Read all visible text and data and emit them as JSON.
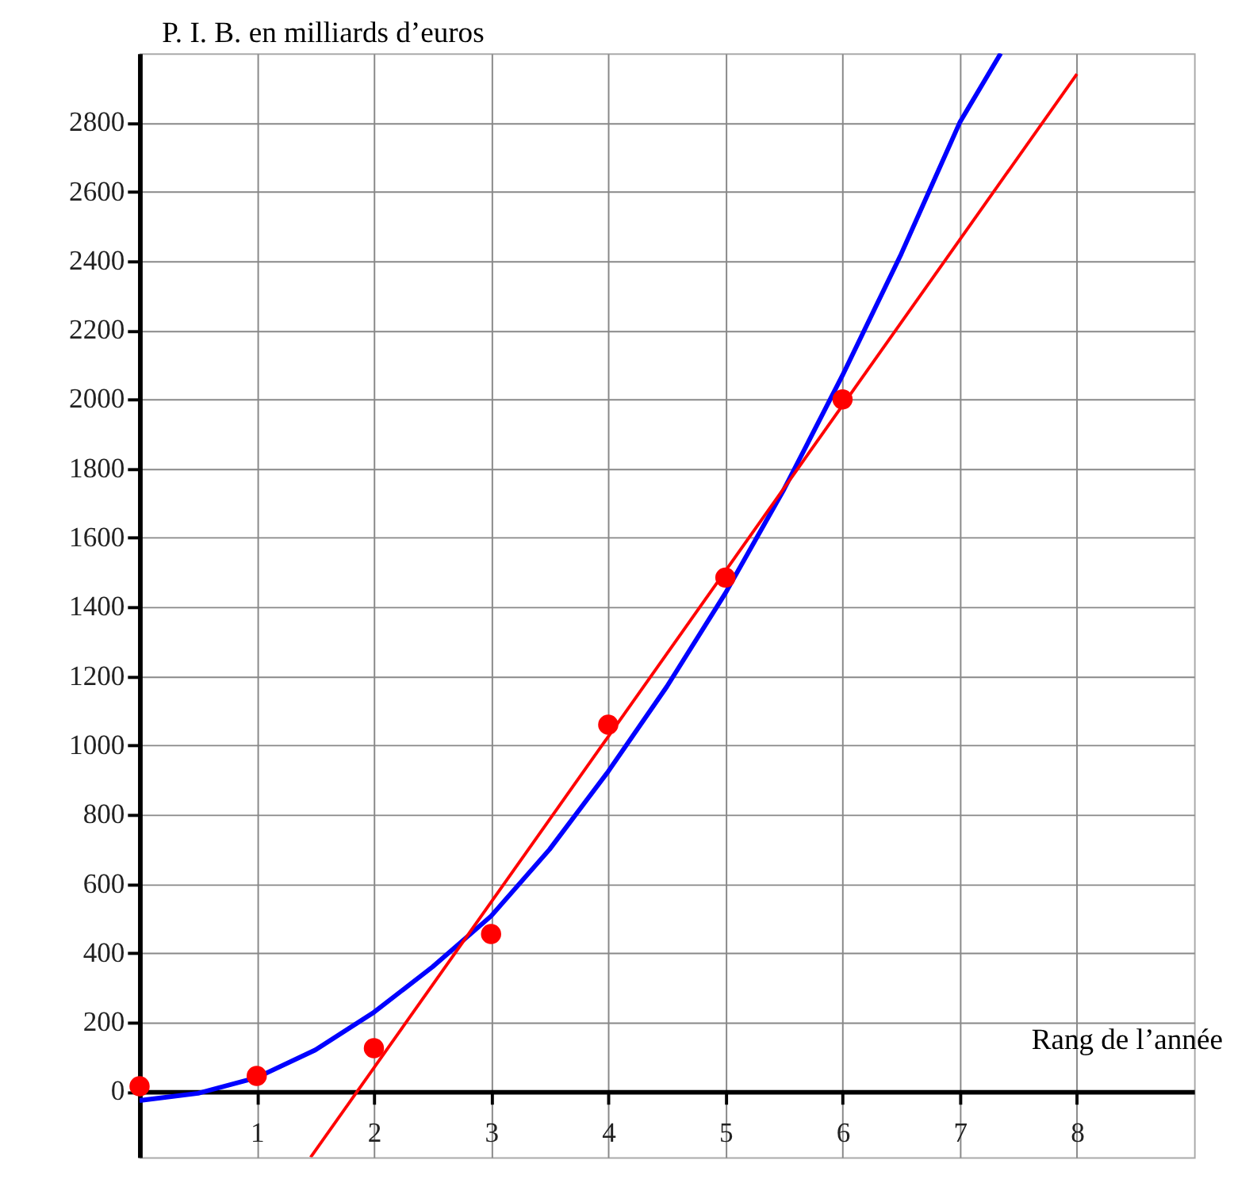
{
  "chart_data": {
    "type": "scatter",
    "xlabel": "Rang de l’année",
    "ylabel": "P. I. B. en milliards d’euros",
    "xlim": [
      0,
      9
    ],
    "ylim": [
      -190,
      3000
    ],
    "xticks": [
      1,
      2,
      3,
      4,
      5,
      6,
      7,
      8
    ],
    "yticks": [
      0,
      200,
      400,
      600,
      800,
      1000,
      1200,
      1400,
      1600,
      1800,
      2000,
      2200,
      2400,
      2600,
      2800
    ],
    "grid": true,
    "marker": "circle",
    "series": [
      {
        "type": "line",
        "color": "#0000ff",
        "marker": "none",
        "x": [
          0,
          0.5,
          1,
          1.5,
          2,
          2.5,
          3,
          3.5,
          4,
          4.5,
          5,
          5.5,
          6,
          6.5,
          7,
          7.35
        ],
        "values": [
          -26,
          -5,
          40,
          120,
          229,
          360,
          507,
          700,
          925,
          1170,
          1440,
          1740,
          2070,
          2420,
          2800,
          3000
        ]
      },
      {
        "type": "line",
        "color": "#ff0000",
        "marker": "none",
        "x": [
          1.46,
          8
        ],
        "values": [
          -190,
          2940
        ]
      },
      {
        "color": "#ff0000",
        "x": [
          0,
          1,
          2,
          3,
          4,
          5,
          6
        ],
        "values": [
          15,
          45,
          125,
          455,
          1060,
          1485,
          2000
        ]
      }
    ]
  }
}
